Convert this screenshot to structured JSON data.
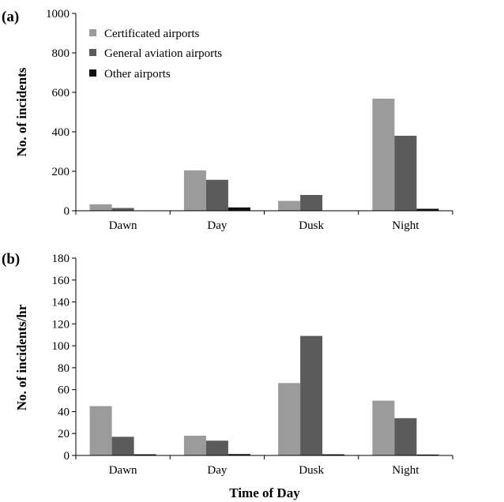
{
  "chart_data": [
    {
      "type": "bar",
      "panel_label": "(a)",
      "categories": [
        "Dawn",
        "Day",
        "Dusk",
        "Night"
      ],
      "series": [
        {
          "name": "Certificated airports",
          "values": [
            33,
            205,
            50,
            568
          ]
        },
        {
          "name": "General aviation airports",
          "values": [
            14,
            157,
            80,
            380
          ]
        },
        {
          "name": "Other airports",
          "values": [
            0,
            17,
            0,
            10
          ]
        }
      ],
      "ylabel": "No. of incidents",
      "xlabel": "",
      "ylim": [
        0,
        1000
      ],
      "yticks": [
        0,
        200,
        400,
        600,
        800,
        1000
      ],
      "legend": "top-left",
      "grid": false
    },
    {
      "type": "bar",
      "panel_label": "(b)",
      "categories": [
        "Dawn",
        "Day",
        "Dusk",
        "Night"
      ],
      "series": [
        {
          "name": "Certificated airports",
          "values": [
            45,
            18,
            66,
            50
          ]
        },
        {
          "name": "General aviation airports",
          "values": [
            17,
            13.5,
            109,
            34
          ]
        },
        {
          "name": "Other airports",
          "values": [
            1,
            1.2,
            1,
            0.8
          ]
        }
      ],
      "ylabel": "No. of incidents/hr",
      "xlabel": "Time of Day",
      "ylim": [
        0,
        180
      ],
      "yticks": [
        0,
        20,
        40,
        60,
        80,
        100,
        120,
        140,
        160,
        180
      ],
      "grid": false
    }
  ],
  "colors": {
    "certificated": "#9b9b9b",
    "general_aviation": "#5b5b5b",
    "other": "#111111",
    "axis": "#000000"
  }
}
